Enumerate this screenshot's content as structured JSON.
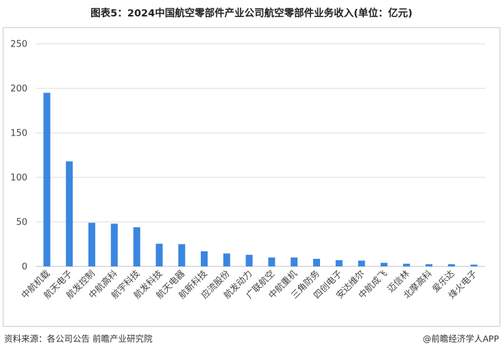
{
  "title": "图表5：2024中国航空零部件产业公司航空零部件业务收入(单位：亿元)",
  "footer": {
    "source": "资料来源：各公司公告 前瞻产业研究院",
    "brand": "@前瞻经济学人APP"
  },
  "colors": {
    "bar": "#3b86e0",
    "grid": "#d9d9d9"
  },
  "chart_data": {
    "type": "bar",
    "title": "",
    "xlabel": "",
    "ylabel": "",
    "ylim": [
      0,
      250
    ],
    "yticks": [
      0,
      50,
      100,
      150,
      200,
      250
    ],
    "grid": true,
    "categories": [
      "中航机载",
      "航天电子",
      "航发控制",
      "中航高科",
      "航宇科技",
      "航发科技",
      "航天电器",
      "航新科技",
      "应流股份",
      "航发动力",
      "广联航空",
      "中航重机",
      "三角防务",
      "四创电子",
      "安达维尔",
      "中航成飞",
      "迈信林",
      "北摩高科",
      "爱乐达",
      "烽火电子"
    ],
    "values": [
      195,
      118,
      49,
      48,
      44,
      25.5,
      25,
      17,
      14.5,
      13,
      10,
      10,
      8.5,
      7,
      6.5,
      4,
      3,
      2.5,
      2.5,
      2
    ]
  }
}
